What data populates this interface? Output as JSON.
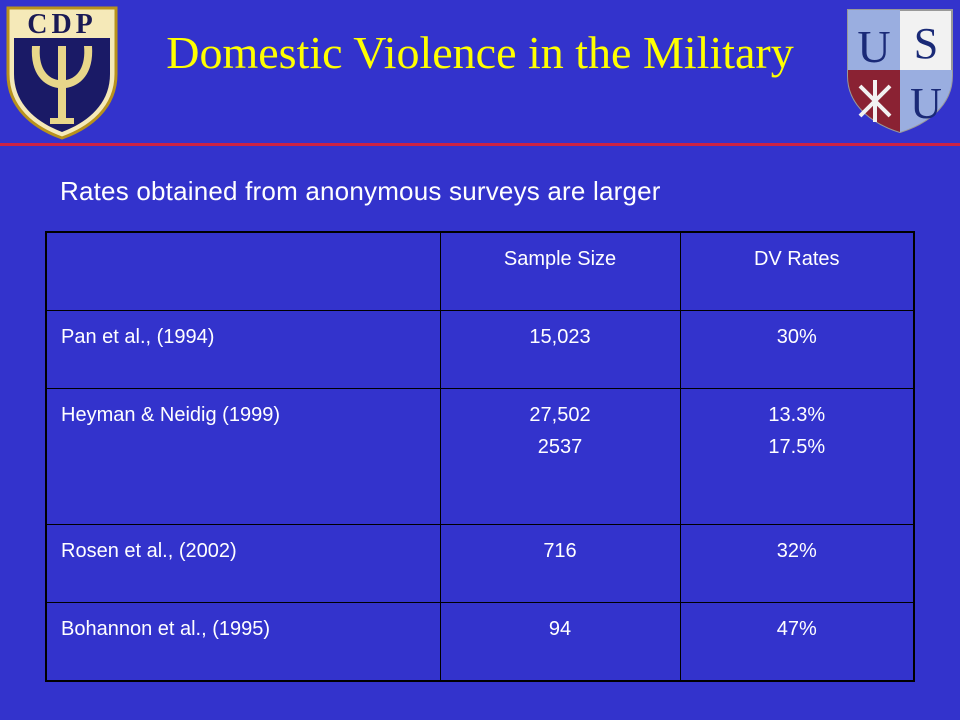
{
  "header": {
    "title": "Domestic Violence in the Military",
    "left_logo_text": "CDP",
    "right_logo_text": "USU"
  },
  "subtitle": "Rates obtained from anonymous surveys are larger",
  "table": {
    "columns": [
      "",
      "Sample Size",
      "DV Rates"
    ],
    "rows": [
      {
        "study": "Pan et al., (1994)",
        "sample": [
          "15,023"
        ],
        "rate": [
          "30%"
        ]
      },
      {
        "study": "Heyman & Neidig (1999)",
        "sample": [
          "27,502",
          "2537"
        ],
        "rate": [
          "13.3%",
          "17.5%"
        ]
      },
      {
        "study": "Rosen et al., (2002)",
        "sample": [
          "716"
        ],
        "rate": [
          "32%"
        ]
      },
      {
        "study": "Bohannon et al., (1995)",
        "sample": [
          "94"
        ],
        "rate": [
          "47%"
        ]
      }
    ]
  },
  "colors": {
    "background": "#3333cc",
    "title": "#ffff00",
    "rule": "#cc2244",
    "text": "#ffffff"
  }
}
